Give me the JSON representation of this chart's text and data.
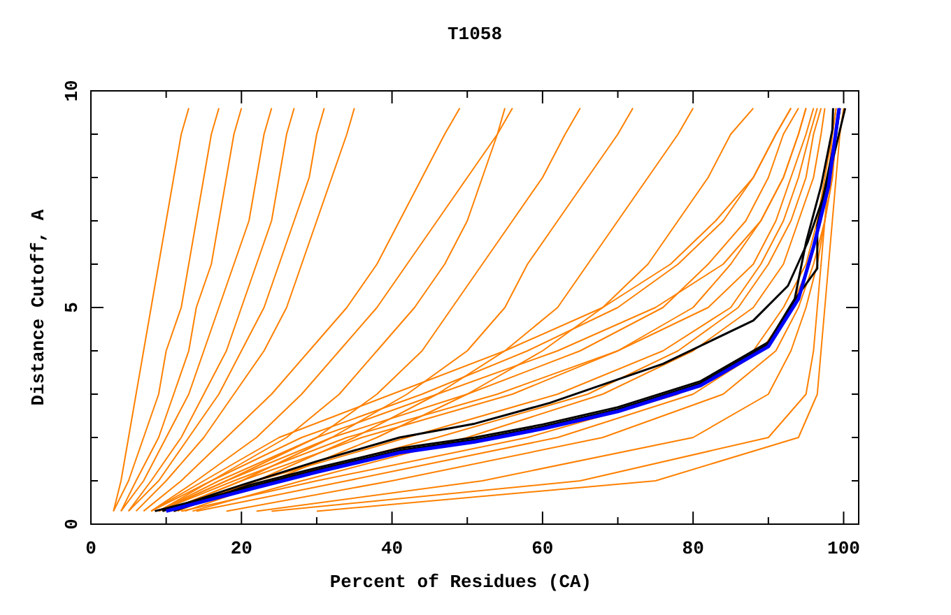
{
  "chart_data": {
    "type": "line",
    "title": "T1058",
    "xlabel": "Percent of Residues (CA)",
    "ylabel": "Distance Cutoff, A",
    "xlim": [
      0,
      102
    ],
    "ylim": [
      0,
      10
    ],
    "xticks": [
      0,
      {
        "value": 10,
        "label": null
      },
      20,
      {
        "value": 30,
        "label": null
      },
      40,
      {
        "value": 50,
        "label": null
      },
      60,
      {
        "value": 70,
        "label": null
      },
      80,
      {
        "value": 90,
        "label": null
      },
      100
    ],
    "yticks": [
      0,
      {
        "value": 1,
        "label": null
      },
      {
        "value": 2,
        "label": null
      },
      {
        "value": 3,
        "label": null
      },
      {
        "value": 4,
        "label": null
      },
      5,
      {
        "value": 6,
        "label": null
      },
      {
        "value": 7,
        "label": null
      },
      {
        "value": 8,
        "label": null
      },
      {
        "value": 9,
        "label": null
      },
      10
    ],
    "grid": false,
    "series": [
      {
        "color": "#ff8000",
        "x": [
          3,
          4,
          5,
          6,
          7,
          8,
          9,
          10,
          11,
          12,
          13
        ],
        "values": [
          0.3,
          1,
          2,
          3,
          4,
          5,
          6,
          7,
          8,
          9,
          9.6
        ]
      },
      {
        "color": "#ff8000",
        "x": [
          3,
          5,
          7,
          9,
          10,
          12,
          13,
          14,
          15,
          16,
          17
        ],
        "values": [
          0.3,
          1,
          2,
          3,
          4,
          5,
          6,
          7,
          8,
          9,
          9.6
        ]
      },
      {
        "color": "#ff8000",
        "x": [
          4,
          6,
          9,
          11,
          13,
          14,
          16,
          17,
          18,
          19,
          20
        ],
        "values": [
          0.3,
          1,
          2,
          3,
          4,
          5,
          6,
          7,
          8,
          9,
          9.6
        ]
      },
      {
        "color": "#ff8000",
        "x": [
          4,
          7,
          10,
          13,
          15,
          17,
          19,
          21,
          22,
          23,
          24
        ],
        "values": [
          0.3,
          1,
          2,
          3,
          4,
          5,
          6,
          7,
          8,
          9,
          9.6
        ]
      },
      {
        "color": "#ff8000",
        "x": [
          5,
          8,
          12,
          15,
          18,
          20,
          22,
          24,
          25,
          26,
          27
        ],
        "values": [
          0.3,
          1,
          2,
          3,
          4,
          5,
          6,
          7,
          8,
          9,
          9.6
        ]
      },
      {
        "color": "#ff8000",
        "x": [
          5,
          9,
          13,
          17,
          20,
          23,
          25,
          27,
          29,
          30,
          31
        ],
        "values": [
          0.3,
          1,
          2,
          3,
          4,
          5,
          6,
          7,
          8,
          9,
          9.6
        ]
      },
      {
        "color": "#ff8000",
        "x": [
          6,
          10,
          15,
          19,
          23,
          26,
          28,
          30,
          32,
          34,
          35
        ],
        "values": [
          0.3,
          1,
          2,
          3,
          4,
          5,
          6,
          7,
          8,
          9,
          9.6
        ]
      },
      {
        "color": "#ff8000",
        "x": [
          7,
          12,
          18,
          24,
          29,
          34,
          38,
          41,
          44,
          47,
          49
        ],
        "values": [
          0.3,
          1,
          2,
          3,
          4,
          5,
          6,
          7,
          8,
          9,
          9.6
        ]
      },
      {
        "color": "#ff8000",
        "x": [
          8,
          14,
          22,
          28,
          33,
          38,
          42,
          46,
          50,
          54,
          56
        ],
        "values": [
          0.3,
          1,
          2,
          3,
          4,
          5,
          6,
          7,
          8,
          9,
          9.6
        ]
      },
      {
        "color": "#ff8000",
        "x": [
          8,
          16,
          26,
          33,
          38,
          43,
          47,
          50,
          52,
          54,
          55
        ],
        "values": [
          0.3,
          1,
          2,
          3,
          4,
          5,
          6,
          7,
          8,
          9,
          9.6
        ]
      },
      {
        "color": "#ff8000",
        "x": [
          9,
          18,
          30,
          38,
          44,
          48,
          52,
          56,
          60,
          63,
          65
        ],
        "values": [
          0.3,
          1,
          2,
          3,
          4,
          5,
          6,
          7,
          8,
          9,
          9.6
        ]
      },
      {
        "color": "#ff8000",
        "x": [
          10,
          20,
          32,
          42,
          50,
          55,
          58,
          62,
          66,
          70,
          72
        ],
        "values": [
          0.3,
          1,
          2,
          3,
          4,
          5,
          6,
          7,
          8,
          9,
          9.6
        ]
      },
      {
        "color": "#ff8000",
        "x": [
          10,
          22,
          35,
          46,
          55,
          62,
          66,
          70,
          74,
          78,
          80
        ],
        "values": [
          0.3,
          1,
          2,
          3,
          4,
          5,
          6,
          7,
          8,
          9,
          9.6
        ]
      },
      {
        "color": "#ff8000",
        "x": [
          11,
          24,
          38,
          50,
          60,
          68,
          74,
          78,
          82,
          85,
          88
        ],
        "values": [
          0.3,
          1,
          2,
          3,
          4,
          5,
          6,
          7,
          8,
          9,
          9.6
        ]
      },
      {
        "color": "#ff8000",
        "x": [
          9,
          16,
          28,
          44,
          58,
          70,
          78,
          84,
          88,
          91,
          93
        ],
        "values": [
          0.3,
          1,
          2,
          3,
          4,
          5,
          6,
          7,
          8,
          9,
          9.6
        ]
      },
      {
        "color": "#ff8000",
        "x": [
          8,
          15,
          25,
          40,
          55,
          68,
          77,
          83,
          88,
          91,
          93
        ],
        "values": [
          0.3,
          1,
          2,
          3,
          4,
          5,
          6,
          7,
          8,
          9,
          9.6
        ]
      },
      {
        "color": "#ff8000",
        "x": [
          9,
          18,
          32,
          50,
          65,
          76,
          82,
          87,
          90,
          92,
          94
        ],
        "values": [
          0.3,
          1,
          2,
          3,
          4,
          5,
          6,
          7,
          8,
          9,
          9.6
        ]
      },
      {
        "color": "#ff8000",
        "x": [
          10,
          20,
          36,
          56,
          70,
          80,
          85,
          89,
          92,
          94,
          95
        ],
        "values": [
          0.3,
          1,
          2,
          3,
          4,
          5,
          6,
          7,
          8,
          9,
          9.6
        ]
      },
      {
        "color": "#ff8000",
        "x": [
          9,
          19,
          34,
          54,
          70,
          82,
          88,
          91,
          93,
          95,
          96
        ],
        "values": [
          0.3,
          1,
          2,
          3,
          4,
          5,
          6,
          7,
          8,
          9,
          9.6
        ]
      },
      {
        "color": "#ff8000",
        "x": [
          11.5,
          22,
          42,
          62,
          76,
          85,
          89,
          92,
          94,
          95.5,
          96.5
        ],
        "values": [
          0.3,
          1,
          2,
          3,
          4,
          5,
          6,
          7,
          8,
          9,
          9.6
        ]
      },
      {
        "color": "#ff8000",
        "x": [
          12.5,
          24,
          46,
          66,
          78,
          86,
          90,
          93,
          95,
          96,
          97
        ],
        "values": [
          0.3,
          1,
          2,
          3,
          4,
          5,
          6,
          7,
          8,
          9,
          9.6
        ]
      },
      {
        "color": "#ff8000",
        "x": [
          13.5,
          28,
          50,
          68,
          80,
          88,
          92,
          94,
          96,
          97,
          97.5
        ],
        "values": [
          0.3,
          1,
          2,
          3,
          4,
          5,
          6,
          7,
          8,
          9,
          9.6
        ]
      },
      {
        "color": "#ff8000",
        "x": [
          9,
          17,
          30,
          46,
          62,
          75,
          84,
          89,
          92,
          94,
          95
        ],
        "values": [
          0.3,
          1,
          2,
          3,
          4,
          5,
          6,
          7,
          8,
          9,
          9.6
        ]
      },
      {
        "color": "#ff8000",
        "x": [
          12,
          30,
          58,
          78,
          88,
          92,
          95,
          96.5,
          97.5,
          98.5,
          99
        ],
        "values": [
          0.3,
          1,
          2,
          3,
          4,
          5,
          6,
          7,
          8,
          9,
          9.6
        ]
      },
      {
        "color": "#ff8000",
        "x": [
          14,
          34,
          62,
          80,
          89,
          93,
          95.5,
          97,
          98,
          99,
          99.5
        ],
        "values": [
          0.3,
          1,
          2,
          3,
          4,
          5,
          6,
          7,
          8,
          9,
          9.6
        ]
      },
      {
        "color": "#ff8000",
        "x": [
          18,
          40,
          68,
          84,
          91,
          94,
          96,
          97.5,
          98.5,
          99,
          99.5
        ],
        "values": [
          0.3,
          1,
          2,
          3,
          4,
          5,
          6,
          7,
          8,
          9,
          9.6
        ]
      },
      {
        "color": "#ff8000",
        "x": [
          22,
          52,
          80,
          90,
          93,
          95,
          96.5,
          97.5,
          98.5,
          99,
          99.5
        ],
        "values": [
          0.3,
          1,
          2,
          3,
          4,
          5,
          6,
          7,
          8,
          9,
          9.6
        ]
      },
      {
        "color": "#ff8000",
        "x": [
          24,
          65,
          90,
          95,
          96,
          96.5,
          97,
          97.5,
          98,
          98.5,
          99
        ],
        "values": [
          0.3,
          1,
          2,
          3,
          4,
          5,
          6,
          7,
          8,
          9,
          9.6
        ]
      },
      {
        "color": "#ff8000",
        "x": [
          30,
          75,
          94,
          96.5,
          97,
          97.5,
          98,
          98.5,
          99,
          99.5,
          100
        ],
        "values": [
          0.3,
          1,
          2,
          3,
          4,
          5,
          6,
          7,
          8,
          9,
          9.6
        ]
      },
      {
        "color": "#000000",
        "x": [
          9.5,
          20,
          30,
          41,
          51,
          61,
          76,
          88,
          92.6,
          95.2,
          97.2,
          99,
          99.5
        ],
        "values": [
          0.3,
          0.9,
          1.45,
          2.0,
          2.32,
          2.8,
          3.7,
          4.7,
          5.5,
          6.5,
          7.5,
          9,
          9.6
        ]
      },
      {
        "color": "#000000",
        "x": [
          11,
          21,
          30,
          41,
          51,
          60,
          70,
          81,
          90,
          93.5,
          95,
          97,
          98.5,
          98.6
        ],
        "values": [
          0.3,
          0.9,
          1.3,
          1.75,
          2.0,
          2.3,
          2.7,
          3.3,
          4.2,
          5.2,
          6.5,
          7.8,
          9.1,
          9.6
        ]
      },
      {
        "color": "#000000",
        "x": [
          8.5,
          21,
          30,
          41,
          51,
          60,
          70,
          81,
          90,
          94,
          96.5,
          96.5,
          98,
          100.2
        ],
        "values": [
          0.3,
          0.85,
          1.25,
          1.7,
          1.95,
          2.25,
          2.65,
          3.25,
          4.15,
          5.3,
          5.9,
          6.9,
          8,
          9.6
        ]
      },
      {
        "color": "#0000ff",
        "x": [
          10,
          21,
          30,
          41,
          51,
          60,
          70,
          81,
          90,
          94,
          96,
          98,
          99,
          99.4
        ],
        "values": [
          0.3,
          0.8,
          1.2,
          1.65,
          1.9,
          2.2,
          2.6,
          3.2,
          4.1,
          5.2,
          6.4,
          7.8,
          9.1,
          9.6
        ]
      }
    ]
  }
}
